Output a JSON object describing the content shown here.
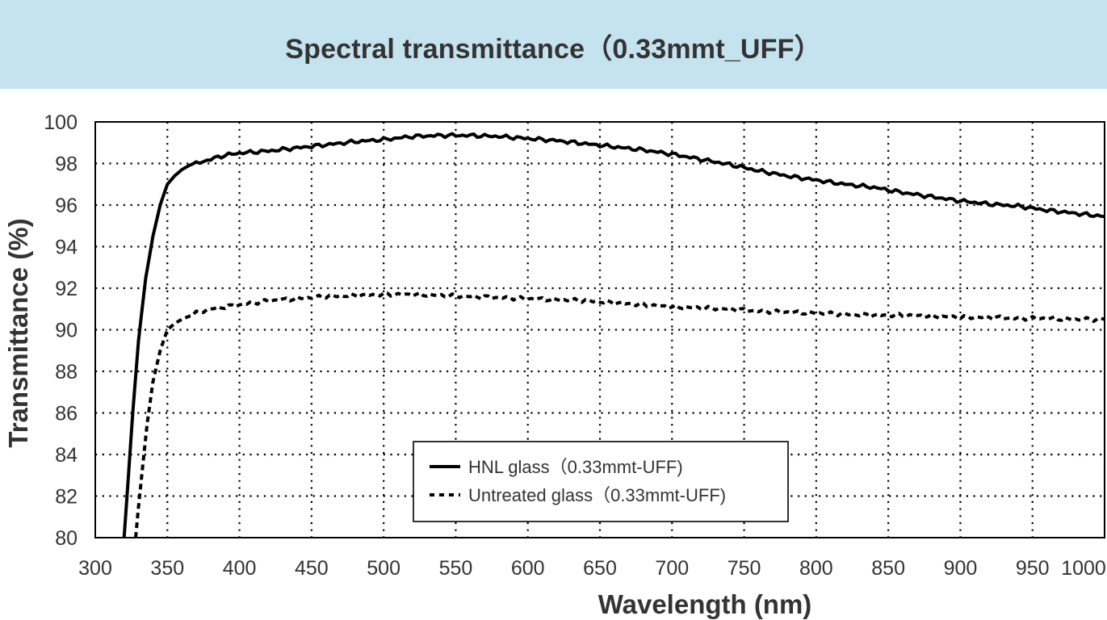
{
  "chart_data": {
    "type": "line",
    "title": "Spectral transmittance（0.33mmt_UFF）",
    "xlabel": "Wavelength (nm)",
    "ylabel": "Transmittance (%)",
    "xlim": [
      300,
      1000
    ],
    "ylim": [
      80,
      100
    ],
    "grid": true,
    "legend_position": "bottom-center",
    "x_ticks": [
      300,
      350,
      400,
      450,
      500,
      550,
      600,
      650,
      700,
      750,
      800,
      850,
      900,
      950,
      1000
    ],
    "x_tick_labels": [
      "300",
      "350",
      "400",
      "450",
      "500",
      "550",
      "600",
      "650",
      "700",
      "750",
      "800",
      "850",
      "900",
      "950",
      "1000"
    ],
    "y_ticks": [
      80,
      82,
      84,
      86,
      88,
      90,
      92,
      94,
      96,
      98,
      100
    ],
    "y_tick_labels": [
      "80",
      "82",
      "84",
      "86",
      "88",
      "90",
      "92",
      "94",
      "96",
      "98",
      "100"
    ],
    "series": [
      {
        "name": "HNL glass（0.33mmt-UFF)",
        "style": "solid",
        "color": "#000000",
        "x": [
          320,
          323,
          326,
          330,
          335,
          340,
          345,
          350,
          355,
          360,
          365,
          370,
          380,
          390,
          400,
          420,
          440,
          460,
          480,
          500,
          520,
          540,
          560,
          580,
          600,
          620,
          640,
          660,
          680,
          700,
          720,
          740,
          760,
          780,
          800,
          820,
          840,
          860,
          880,
          900,
          920,
          940,
          960,
          980,
          1000
        ],
        "y": [
          80,
          83,
          86,
          89.5,
          92.5,
          94.5,
          96,
          97,
          97.4,
          97.7,
          97.9,
          98,
          98.2,
          98.4,
          98.5,
          98.6,
          98.75,
          98.9,
          99.05,
          99.15,
          99.3,
          99.35,
          99.35,
          99.3,
          99.2,
          99.1,
          98.95,
          98.8,
          98.65,
          98.45,
          98.2,
          97.95,
          97.65,
          97.4,
          97.2,
          97.0,
          96.85,
          96.6,
          96.4,
          96.2,
          96.05,
          95.95,
          95.75,
          95.6,
          95.45
        ]
      },
      {
        "name": "Untreated glass（0.33mmt-UFF)",
        "style": "dotted",
        "color": "#000000",
        "x": [
          328,
          330,
          333,
          336,
          340,
          345,
          350,
          355,
          360,
          370,
          380,
          390,
          400,
          420,
          440,
          460,
          480,
          500,
          520,
          540,
          560,
          580,
          600,
          620,
          640,
          660,
          680,
          700,
          720,
          740,
          760,
          780,
          800,
          820,
          840,
          860,
          880,
          900,
          920,
          940,
          960,
          980,
          1000
        ],
        "y": [
          80,
          81.5,
          83.5,
          85.5,
          87.5,
          89,
          90,
          90.3,
          90.5,
          90.8,
          91.0,
          91.1,
          91.2,
          91.4,
          91.5,
          91.6,
          91.65,
          91.7,
          91.7,
          91.65,
          91.6,
          91.55,
          91.5,
          91.45,
          91.4,
          91.3,
          91.2,
          91.1,
          91.05,
          91.0,
          90.9,
          90.85,
          90.8,
          90.75,
          90.7,
          90.7,
          90.65,
          90.6,
          90.6,
          90.55,
          90.55,
          90.5,
          90.5
        ]
      }
    ]
  }
}
